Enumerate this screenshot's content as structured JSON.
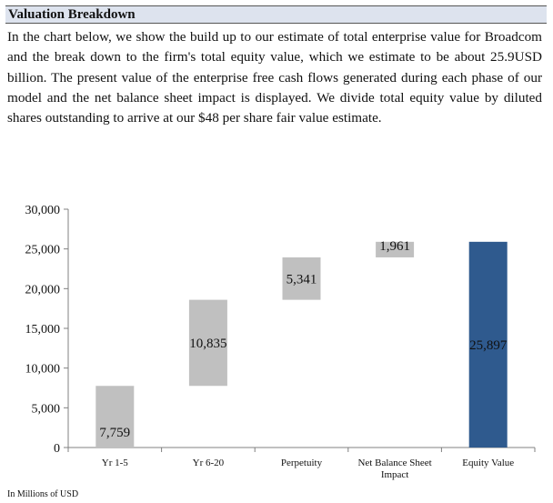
{
  "section": {
    "title": "Valuation Breakdown",
    "paragraph": "In the chart below, we show the build up to our estimate of total enterprise value for Broadcom and the break down to the firm's total equity value, which we estimate to be about 25.9USD billion. The present value of the enterprise free cash flows generated during each phase of our model and the net balance sheet impact is displayed. We divide total equity value by diluted shares outstanding to arrive at our $48 per share fair value estimate."
  },
  "chart_data": {
    "type": "bar",
    "subtype": "waterfall",
    "categories": [
      "Yr 1-5",
      "Yr 6-20",
      "Perpetuity",
      "Net Balance Sheet Impact",
      "Equity Value"
    ],
    "values": [
      7759,
      10835,
      5341,
      1961,
      25897
    ],
    "data_labels": [
      "7,759",
      "10,835",
      "5,341",
      "1,961",
      "25,897"
    ],
    "total_index": 4,
    "ylim": [
      0,
      30000
    ],
    "yticks": [
      0,
      5000,
      10000,
      15000,
      20000,
      25000,
      30000
    ],
    "ytick_labels": [
      "0",
      "5,000",
      "10,000",
      "15,000",
      "20,000",
      "25,000",
      "30,000"
    ],
    "grid": false,
    "colors": {
      "step": "#c0c0c0",
      "total": "#2f5a8e",
      "axis": "#808080"
    },
    "footnote": "In Millions of USD"
  }
}
